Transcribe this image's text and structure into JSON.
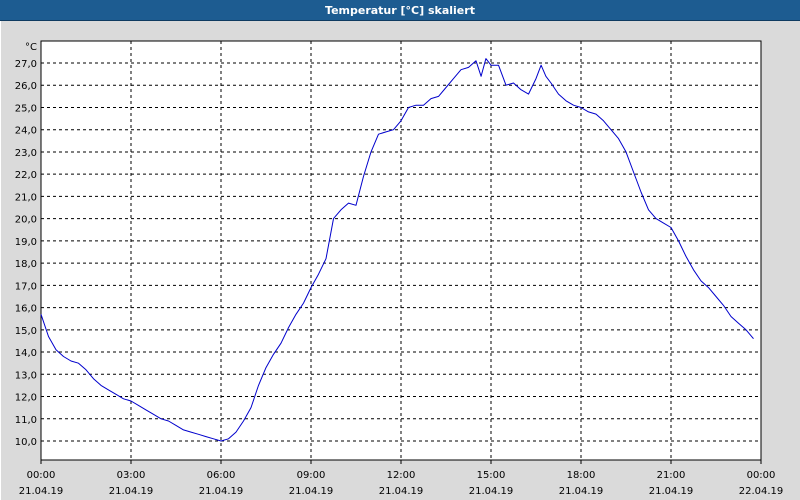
{
  "window": {
    "title": "Temperatur [°C] skaliert"
  },
  "chart_data": {
    "type": "line",
    "title": "Temperatur [°C] skaliert",
    "ylabel": "°C",
    "xlabel": "",
    "ylim": [
      9.0,
      27.5
    ],
    "yticks": [
      10.0,
      11.0,
      12.0,
      13.0,
      14.0,
      15.0,
      16.0,
      17.0,
      18.0,
      19.0,
      20.0,
      21.0,
      22.0,
      23.0,
      24.0,
      25.0,
      26.0,
      27.0
    ],
    "ytick_labels": [
      "10,0",
      "11,0",
      "12,0",
      "13,0",
      "14,0",
      "15,0",
      "16,0",
      "17,0",
      "18,0",
      "19,0",
      "20,0",
      "21,0",
      "22,0",
      "23,0",
      "24,0",
      "25,0",
      "26,0",
      "27,0"
    ],
    "xlim": [
      0,
      24
    ],
    "xticks": [
      {
        "hour": 0,
        "time": "00:00",
        "date": "21.04.19"
      },
      {
        "hour": 3,
        "time": "03:00",
        "date": "21.04.19"
      },
      {
        "hour": 6,
        "time": "06:00",
        "date": "21.04.19"
      },
      {
        "hour": 9,
        "time": "09:00",
        "date": "21.04.19"
      },
      {
        "hour": 12,
        "time": "12:00",
        "date": "21.04.19"
      },
      {
        "hour": 15,
        "time": "15:00",
        "date": "21.04.19"
      },
      {
        "hour": 18,
        "time": "18:00",
        "date": "21.04.19"
      },
      {
        "hour": 21,
        "time": "21:00",
        "date": "21.04.19"
      },
      {
        "hour": 24,
        "time": "00:00",
        "date": "22.04.19"
      }
    ],
    "grid": true,
    "line_color": "#0000cc",
    "series": [
      {
        "x": [
          0.0,
          0.25,
          0.5,
          0.75,
          1.0,
          1.25,
          1.5,
          1.75,
          2.0,
          2.25,
          2.5,
          2.75,
          3.0,
          3.25,
          3.5,
          3.75,
          4.0,
          4.25,
          4.5,
          4.75,
          5.0,
          5.25,
          5.5,
          5.75,
          6.0,
          6.25,
          6.5,
          6.75,
          7.0,
          7.25,
          7.5,
          7.75,
          8.0,
          8.25,
          8.5,
          8.75,
          9.0,
          9.25,
          9.5,
          9.75,
          10.0,
          10.25,
          10.5,
          10.75,
          11.0,
          11.25,
          11.5,
          11.75,
          12.0,
          12.25,
          12.5,
          12.75,
          13.0,
          13.25,
          13.5,
          13.75,
          14.0,
          14.25,
          14.5,
          14.67,
          14.83,
          15.0,
          15.25,
          15.5,
          15.75,
          16.0,
          16.25,
          16.5,
          16.67,
          16.83,
          17.0,
          17.25,
          17.5,
          17.75,
          18.0,
          18.25,
          18.5,
          18.75,
          19.0,
          19.25,
          19.5,
          19.75,
          20.0,
          20.25,
          20.5,
          20.75,
          21.0,
          21.25,
          21.5,
          21.75,
          22.0,
          22.25,
          22.5,
          22.75,
          23.0,
          23.25,
          23.5,
          23.75
        ],
        "y": [
          15.7,
          14.7,
          14.1,
          13.8,
          13.6,
          13.5,
          13.2,
          12.8,
          12.5,
          12.3,
          12.1,
          11.9,
          11.8,
          11.6,
          11.4,
          11.2,
          11.0,
          10.9,
          10.7,
          10.5,
          10.4,
          10.3,
          10.2,
          10.1,
          10.0,
          10.1,
          10.4,
          10.9,
          11.5,
          12.5,
          13.3,
          13.9,
          14.4,
          15.1,
          15.7,
          16.2,
          16.9,
          17.5,
          18.2,
          20.0,
          20.4,
          20.7,
          20.6,
          21.9,
          23.0,
          23.8,
          23.9,
          24.0,
          24.4,
          25.0,
          25.1,
          25.1,
          25.4,
          25.5,
          25.9,
          26.3,
          26.7,
          26.8,
          27.1,
          26.4,
          27.2,
          26.9,
          26.9,
          26.0,
          26.1,
          25.8,
          25.6,
          26.3,
          26.9,
          26.4,
          26.1,
          25.6,
          25.3,
          25.1,
          25.0,
          24.8,
          24.7,
          24.4,
          24.0,
          23.6,
          23.0,
          22.1,
          21.2,
          20.4,
          20.0,
          19.8,
          19.6,
          19.0,
          18.3,
          17.7,
          17.2,
          16.9,
          16.5,
          16.1,
          15.6,
          15.3,
          15.0,
          14.6
        ]
      }
    ]
  }
}
